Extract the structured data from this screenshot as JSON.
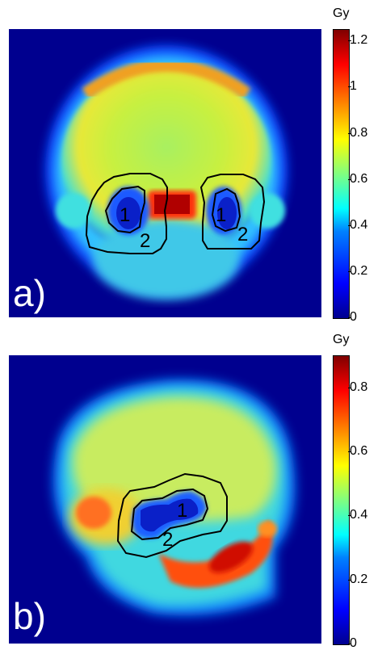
{
  "panel_a": {
    "label": "a)",
    "colorbar": {
      "unit": "Gy",
      "ticks": [
        "0",
        "0.2",
        "0.4",
        "0.6",
        "0.8",
        "1",
        "1.2"
      ],
      "range": [
        0,
        1.25
      ]
    },
    "contour_labels": [
      "1",
      "2",
      "1",
      "2"
    ]
  },
  "panel_b": {
    "label": "b)",
    "colorbar": {
      "unit": "Gy",
      "ticks": [
        "0",
        "0.2",
        "0.4",
        "0.6",
        "0.8"
      ],
      "range": [
        0,
        0.9
      ]
    },
    "contour_labels": [
      "1",
      "2"
    ]
  },
  "colors": {
    "background": "#00008f",
    "jet_low": "#00008f",
    "jet_high": "#800000"
  }
}
